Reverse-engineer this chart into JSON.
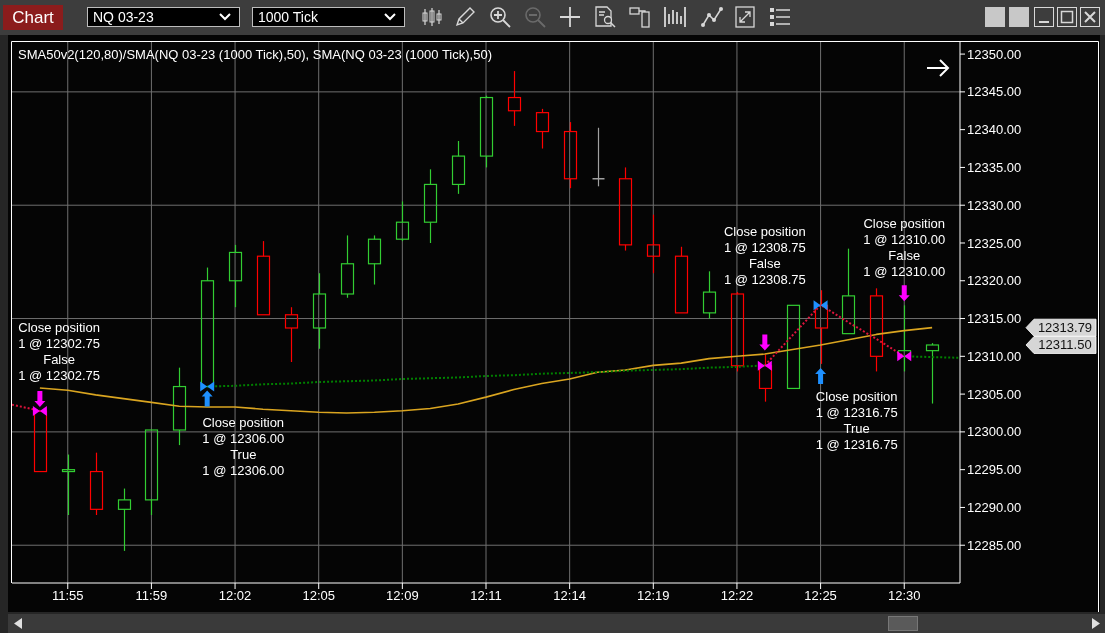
{
  "chart_data": {
    "type": "candlestick",
    "title": "SMA50v2(120,80)/SMA(NQ 03-23 (1000 Tick),50), SMA(NQ 03-23 (1000 Tick),50)",
    "categories": [
      null,
      null,
      "11:55",
      null,
      null,
      "11:59",
      null,
      null,
      "12:02",
      null,
      null,
      "12:05",
      null,
      null,
      "12:09",
      null,
      null,
      "12:11",
      null,
      null,
      "12:14",
      null,
      null,
      "12:19",
      null,
      null,
      "12:22",
      null,
      null,
      "12:25",
      null,
      null,
      "12:30",
      null,
      null
    ],
    "ohlc": [
      null,
      [
        12302.75,
        12302.75,
        12294.75,
        12294.75
      ],
      [
        12294.75,
        12297.0,
        12289.0,
        12295.0
      ],
      [
        12294.75,
        12297.25,
        12289.0,
        12289.75
      ],
      [
        12289.75,
        12292.5,
        12284.25,
        12291.0
      ],
      [
        12291.0,
        12300.25,
        12289.0,
        12300.25
      ],
      [
        12300.25,
        12308.5,
        12298.25,
        12306.0
      ],
      [
        12306.0,
        12321.75,
        12306.0,
        12320.0
      ],
      [
        12320.0,
        12324.75,
        12316.5,
        12323.75
      ],
      [
        12323.25,
        12325.25,
        12315.5,
        12315.5
      ],
      [
        12315.5,
        12316.5,
        12309.25,
        12313.75
      ],
      [
        12313.75,
        12321.0,
        12311.0,
        12318.25
      ],
      [
        12318.25,
        12326.0,
        12317.75,
        12322.25
      ],
      [
        12322.25,
        12326.0,
        12319.5,
        12325.5
      ],
      [
        12325.5,
        12330.5,
        12325.25,
        12327.75
      ],
      [
        12327.75,
        12334.75,
        12325.0,
        12332.75
      ],
      [
        12332.75,
        12338.5,
        12331.5,
        12336.5
      ],
      [
        12336.5,
        12344.5,
        12335.0,
        12344.25
      ],
      [
        12344.25,
        12347.75,
        12340.5,
        12342.5
      ],
      [
        12342.25,
        12342.75,
        12337.5,
        12339.75
      ],
      [
        12339.75,
        12341.0,
        12332.25,
        12333.5
      ],
      [
        12333.5,
        12340.25,
        12332.5,
        12333.5
      ],
      [
        12333.5,
        12335.0,
        12324.0,
        12324.75
      ],
      [
        12324.75,
        12328.75,
        12321.0,
        12323.25
      ],
      [
        12323.25,
        12324.5,
        12315.75,
        12315.75
      ],
      [
        12315.75,
        12321.25,
        12315.0,
        12318.5
      ],
      [
        12318.25,
        12318.5,
        12308.0,
        12308.75
      ],
      [
        12308.75,
        12310.25,
        12304.0,
        12305.75
      ],
      [
        12305.75,
        12316.75,
        12305.75,
        12316.75
      ],
      [
        12316.75,
        12318.75,
        12309.0,
        12313.75
      ],
      [
        12313.0,
        12324.25,
        12313.0,
        12318.0
      ],
      [
        12318.0,
        12319.0,
        12308.0,
        12310.0
      ],
      [
        12310.0,
        12316.75,
        12308.0,
        12310.75
      ],
      [
        12310.75,
        12311.75,
        12303.75,
        12311.5
      ],
      null
    ],
    "colors": [
      null,
      "#ff0000",
      "#32cd32",
      "#ff0000",
      "#32cd32",
      "#32cd32",
      "#32cd32",
      "#32cd32",
      "#32cd32",
      "#ff0000",
      "#ff0000",
      "#32cd32",
      "#32cd32",
      "#32cd32",
      "#32cd32",
      "#32cd32",
      "#32cd32",
      "#32cd32",
      "#ff0000",
      "#ff0000",
      "#ff0000",
      "#a0a0a0",
      "#ff0000",
      "#ff0000",
      "#ff0000",
      "#32cd32",
      "#ff0000",
      "#ff0000",
      "#32cd32",
      "#ff0000",
      "#32cd32",
      "#ff0000",
      "#32cd32",
      "#32cd32",
      null
    ],
    "series": [
      {
        "type": "line",
        "color": "#daa520",
        "line_style": "solid",
        "values": [
          null,
          12305.8,
          12305.5,
          12304.9,
          12304.4,
          12303.9,
          12303.4,
          12303.3,
          12303.3,
          12303.0,
          12302.8,
          12302.6,
          12302.5,
          12302.6,
          12302.8,
          12303.1,
          12303.7,
          12304.6,
          12305.6,
          12306.4,
          12307.0,
          12307.9,
          12308.2,
          12308.8,
          12309.1,
          12309.7,
          12310.0,
          12310.3,
          12310.9,
          12311.5,
          12312.2,
          12312.9,
          12313.4,
          12313.8,
          null
        ]
      },
      {
        "type": "line",
        "color": "#dc143c",
        "line_style": "dotted",
        "values": [
          12303.6,
          12302.8,
          null,
          null,
          null,
          null,
          null,
          null,
          null,
          null,
          null,
          null,
          null,
          null,
          null,
          null,
          null,
          null,
          null,
          null,
          null,
          null,
          null,
          null,
          null,
          null,
          null,
          12308.8,
          12312.8,
          12316.8,
          12314.5,
          12312.3,
          12310.0,
          null,
          null
        ]
      },
      {
        "type": "line",
        "color": "#008000",
        "line_style": "dotted",
        "values": [
          null,
          null,
          null,
          null,
          null,
          null,
          null,
          12306.0,
          12306.1,
          12306.3,
          12306.4,
          12306.6,
          12306.7,
          12306.8,
          12307.0,
          12307.1,
          12307.2,
          12307.4,
          12307.5,
          12307.7,
          12307.8,
          12307.9,
          12308.1,
          12308.2,
          12308.3,
          12308.5,
          12308.6,
          12308.8,
          null,
          null,
          null,
          null,
          12310.0,
          12309.9,
          12309.8
        ]
      },
      {
        "type": "scatter",
        "color": "#ff00ff",
        "marker": "triangle",
        "values": [
          null,
          12302.75,
          null,
          null,
          null,
          null,
          null,
          null,
          null,
          null,
          null,
          null,
          null,
          null,
          null,
          null,
          null,
          null,
          null,
          null,
          null,
          null,
          null,
          null,
          null,
          null,
          null,
          12308.75,
          null,
          null,
          null,
          null,
          12310.0,
          null,
          null
        ]
      },
      {
        "type": "scatter",
        "color": "#1e90ff",
        "marker": "triangle",
        "values": [
          null,
          null,
          null,
          null,
          null,
          null,
          null,
          12306.0,
          null,
          null,
          null,
          null,
          null,
          null,
          null,
          null,
          null,
          null,
          null,
          null,
          null,
          null,
          null,
          null,
          null,
          null,
          null,
          null,
          null,
          12316.75,
          null,
          null,
          null,
          null,
          null
        ]
      }
    ],
    "ylim": [
      12280,
      12351.6
    ],
    "yticks": [
      {
        "value": 12285,
        "label": "12285.00"
      },
      {
        "value": 12290,
        "label": "12290.00"
      },
      {
        "value": 12295,
        "label": "12295.00"
      },
      {
        "value": 12300,
        "label": "12300.00"
      },
      {
        "value": 12305,
        "label": "12305.00"
      },
      {
        "value": 12310,
        "label": "12310.00"
      },
      {
        "value": 12315,
        "label": "12315.00"
      },
      {
        "value": 12320,
        "label": "12320.00"
      },
      {
        "value": 12325,
        "label": "12325.00"
      },
      {
        "value": 12330,
        "label": "12330.00"
      },
      {
        "value": 12335,
        "label": "12335.00"
      },
      {
        "value": 12340,
        "label": "12340.00"
      },
      {
        "value": 12345,
        "label": "12345.00"
      },
      {
        "value": 12350,
        "label": "12350.00"
      }
    ],
    "grid": true,
    "annotations": [
      "Chart",
      "NQ 03-23",
      "1000 Tick",
      "12313.79",
      "12311.50",
      "Close position\n1 @ 12302.75\nFalse\n1 @ 12302.75",
      "Close position\n1 @ 12306.00\nTrue\n1 @ 12306.00",
      "Close position\n1 @ 12308.75\nFalse\n1 @ 12308.75",
      "Close position\n1 @ 12316.75\nTrue\n1 @ 12316.75",
      "Close position\n1 @ 12310.00\nFalse\n1 @ 12310.00"
    ]
  }
}
